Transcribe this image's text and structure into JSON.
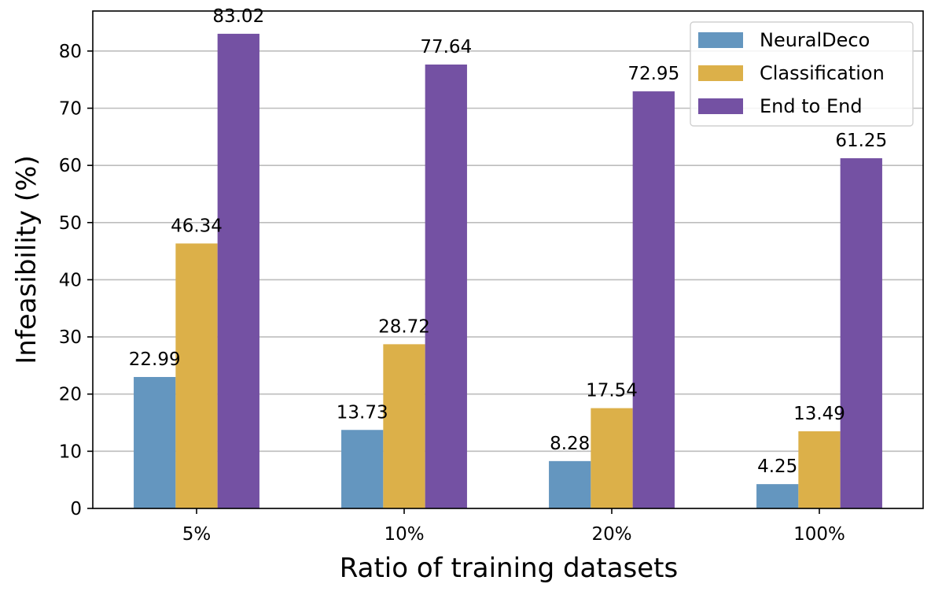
{
  "chart_data": {
    "type": "bar",
    "title": "",
    "xlabel": "Ratio of training datasets",
    "ylabel": "Infeasibility (%)",
    "categories": [
      "5%",
      "10%",
      "20%",
      "100%"
    ],
    "series": [
      {
        "name": "NeuralDeco",
        "color": "#6496bf",
        "values": [
          22.99,
          13.73,
          8.28,
          4.25
        ],
        "labels": [
          "22.99",
          "13.73",
          "8.28",
          "4.25"
        ]
      },
      {
        "name": "Classification",
        "color": "#dcb049",
        "values": [
          46.34,
          28.72,
          17.54,
          13.49
        ],
        "labels": [
          "46.34",
          "28.72",
          "17.54",
          "13.49"
        ]
      },
      {
        "name": "End to End",
        "color": "#7451a3",
        "values": [
          83.02,
          77.64,
          72.95,
          61.25
        ],
        "labels": [
          "83.02",
          "77.64",
          "72.95",
          "61.25"
        ]
      }
    ],
    "ylim": [
      0,
      87
    ],
    "yticks": [
      0,
      10,
      20,
      30,
      40,
      50,
      60,
      70,
      80
    ],
    "ytick_labels": [
      "0",
      "10",
      "20",
      "30",
      "40",
      "50",
      "60",
      "70",
      "80"
    ],
    "grid": true,
    "legend_position": "top-right"
  }
}
